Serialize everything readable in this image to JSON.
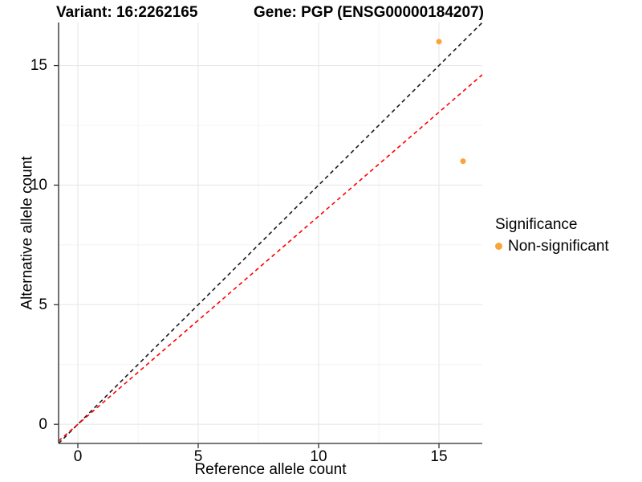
{
  "chart_data": {
    "type": "scatter",
    "title_variant": "Variant: 16:2262165",
    "title_gene": "Gene: PGP (ENSG00000184207)",
    "xlabel": "Reference allele count",
    "ylabel": "Alternative allele count",
    "xlim": [
      -0.8,
      16.8
    ],
    "ylim": [
      -0.8,
      16.8
    ],
    "x_ticks": [
      0,
      5,
      10,
      15
    ],
    "y_ticks": [
      0,
      5,
      10,
      15
    ],
    "x_minor_ticks": [
      2.5,
      7.5,
      12.5
    ],
    "y_minor_ticks": [
      2.5,
      7.5,
      12.5
    ],
    "grid": true,
    "legend_position": "right",
    "points": [
      {
        "x": 15,
        "y": 16,
        "series": "Non-significant"
      },
      {
        "x": 16,
        "y": 11,
        "series": "Non-significant"
      }
    ],
    "lines": [
      {
        "name": "identity",
        "slope": 1,
        "intercept": 0,
        "color": "#1A1A1A",
        "style": "dashed"
      },
      {
        "name": "expected-ratio",
        "slope": 0.87,
        "intercept": 0,
        "color": "#FF0000",
        "style": "dashed"
      }
    ],
    "legend": {
      "title": "Significance",
      "items": [
        {
          "label": "Non-significant",
          "color": "#F9A43A"
        }
      ]
    },
    "colors": {
      "point": "#F9A43A",
      "grid_major": "#E8E8E8",
      "grid_minor": "#F2F2F2",
      "axis_line": "#4D4D4D",
      "tick_mark": "#333333"
    }
  }
}
